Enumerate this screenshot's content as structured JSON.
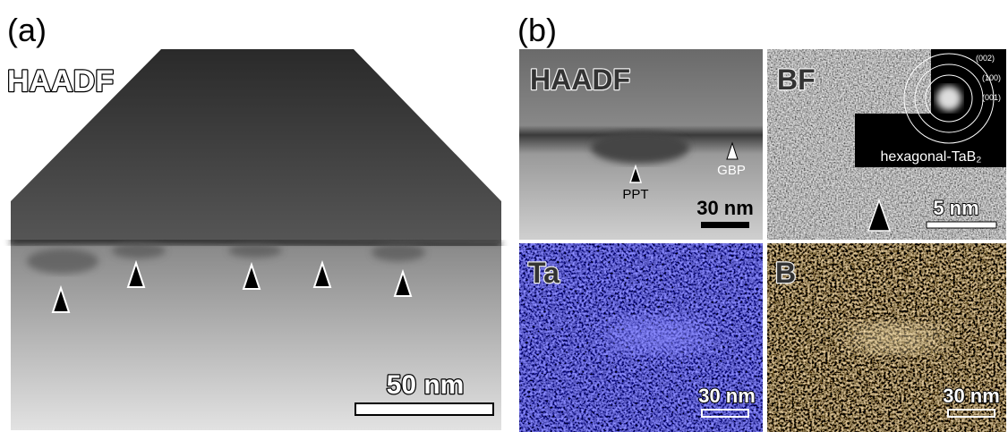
{
  "panels": {
    "a": {
      "label": "(a)",
      "image_label": "HAADF",
      "scale_bar": "50 nm"
    },
    "b": {
      "label": "(b)",
      "subpanels": [
        {
          "label": "HAADF",
          "annotations": [
            "PPT",
            "GBP"
          ],
          "scale_bar": "30 nm"
        },
        {
          "label": "BF",
          "inset": {
            "rings": [
              "(002)",
              "(100)",
              "(001)"
            ],
            "caption": "hexagonal-TaB₂"
          },
          "scale_bar": "5 nm"
        },
        {
          "label": "Ta",
          "scale_bar": "30 nm"
        },
        {
          "label": "B",
          "scale_bar": "30 nm"
        }
      ]
    }
  }
}
